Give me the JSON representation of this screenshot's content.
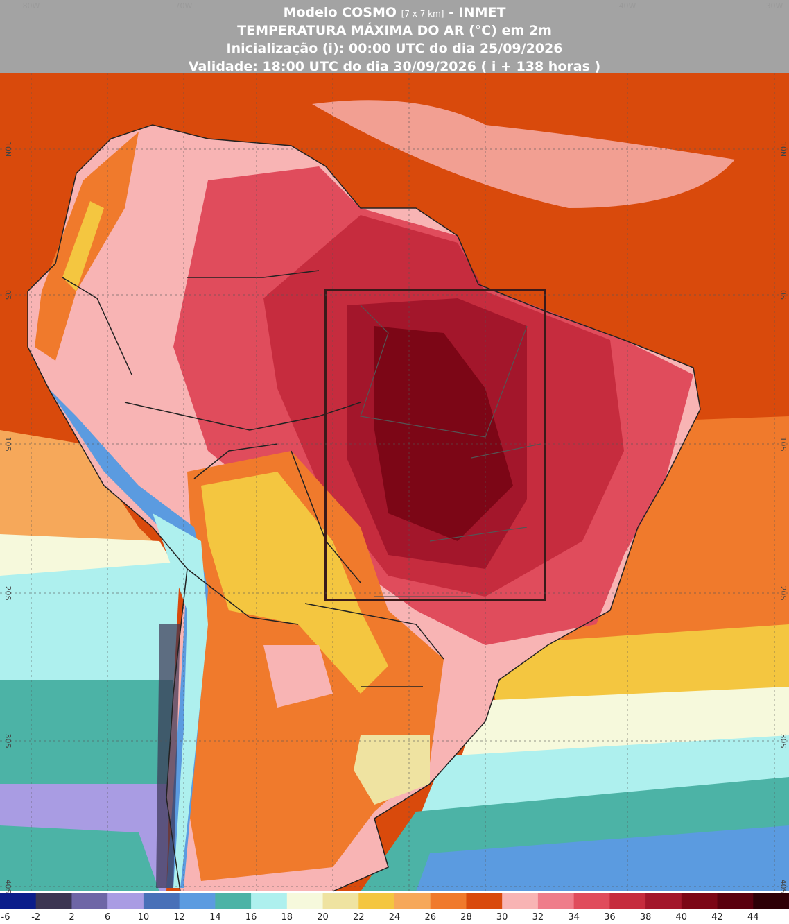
{
  "header": {
    "line1": [
      "Modelo COSMO",
      "[7 x 7 km]",
      "- INMET"
    ],
    "line2": "TEMPERATURA MÁXIMA DO AR (°C) em 2m",
    "line3": "Inicialização (i): 00:00 UTC do dia 25/09/2026",
    "line4": "Validade: 18:00 UTC do dia 30/09/2026 ( i + 138 horas )"
  },
  "grid": {
    "lon_labels": [
      "80W",
      "70W",
      "40W",
      "30W"
    ],
    "lat_labels": [
      "10N",
      "0S",
      "10S",
      "20S",
      "30S",
      "40S"
    ]
  },
  "legend": {
    "labels": [
      -6,
      -2,
      2,
      6,
      10,
      12,
      14,
      16,
      18,
      20,
      22,
      24,
      26,
      28,
      30,
      32,
      34,
      36,
      38,
      40,
      42,
      44
    ],
    "colors": [
      "#0b1d8a",
      "#3b3552",
      "#6e66a6",
      "#a99ce3",
      "#4870b8",
      "#5b9be0",
      "#4cb3a6",
      "#aef0ee",
      "#f6f9dc",
      "#efe3a1",
      "#f4c640",
      "#f6a85a",
      "#f07a2c",
      "#d94a0c",
      "#f8b4b4",
      "#ef7d8a",
      "#e04c5c",
      "#c62c3e",
      "#a3162b",
      "#7c0616",
      "#5a000e",
      "#2e0006"
    ]
  }
}
